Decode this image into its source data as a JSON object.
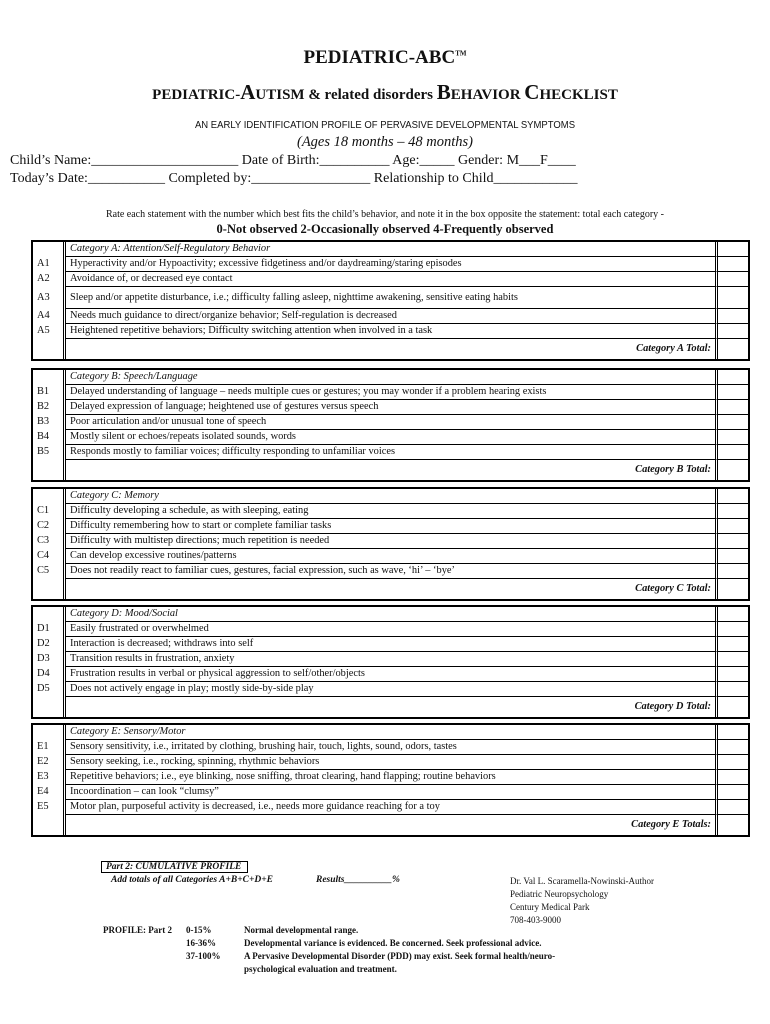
{
  "header": {
    "title": "PEDIATRIC-ABC",
    "tm": "TM",
    "subtitle_parts": [
      "PEDIATRIC-",
      "A",
      "UTISM & related disorders ",
      "B",
      "EHAVIOR ",
      "C",
      "HECKLIST"
    ],
    "tagline": "AN EARLY IDENTIFICATION PROFILE OF PERVASIVE DEVELOPMENTAL SYMPTOMS",
    "ages": "(Ages 18 months – 48 months)"
  },
  "fields": {
    "line1": "Child’s Name:_____________________  Date of Birth:__________  Age:_____  Gender: M___F____",
    "line2": "Today’s Date:___________    Completed by:_________________  Relationship to Child____________"
  },
  "instructions": {
    "rate": "Rate each statement with the number which best fits the child’s behavior, and note it in the box opposite the statement: total each category -",
    "scale": "0-Not observed   2-Occasionally observed   4-Frequently observed"
  },
  "categories": [
    {
      "title": "Category A: Attention/Self-Regulatory Behavior",
      "total": "Category A Total:",
      "items": [
        {
          "id": "A1",
          "text": "Hyperactivity and/or Hypoactivity; excessive fidgetiness and/or daydreaming/staring episodes"
        },
        {
          "id": "A2",
          "text": "Avoidance of, or decreased eye contact"
        },
        {
          "id": "A3",
          "text": "Sleep and/or appetite disturbance, i.e.; difficulty falling asleep, nighttime awakening, sensitive eating habits"
        },
        {
          "id": "A4",
          "text": "Needs much guidance to direct/organize behavior; Self-regulation is decreased"
        },
        {
          "id": "A5",
          "text": "Heightened repetitive behaviors; Difficulty switching attention when involved in a task"
        }
      ]
    },
    {
      "title": "Category B: Speech/Language",
      "total": "Category B Total:",
      "items": [
        {
          "id": "B1",
          "text": "Delayed understanding of language – needs multiple cues or gestures; you may wonder if a problem hearing exists"
        },
        {
          "id": "B2",
          "text": "Delayed expression of language; heightened use of gestures versus speech"
        },
        {
          "id": "B3",
          "text": "Poor articulation and/or unusual tone of speech"
        },
        {
          "id": "B4",
          "text": "Mostly silent or echoes/repeats isolated sounds, words"
        },
        {
          "id": "B5",
          "text": "Responds mostly to familiar voices; difficulty responding to unfamiliar voices"
        }
      ]
    },
    {
      "title": "Category C: Memory",
      "total": "Category C Total:",
      "items": [
        {
          "id": "C1",
          "text": "Difficulty developing a schedule, as with sleeping, eating"
        },
        {
          "id": "C2",
          "text": "Difficulty remembering how to start or complete familiar tasks"
        },
        {
          "id": "C3",
          "text": "Difficulty with multistep directions; much repetition is needed"
        },
        {
          "id": "C4",
          "text": "Can develop excessive routines/patterns"
        },
        {
          "id": "C5",
          "text": "Does not readily react to familiar cues, gestures, facial expression, such as wave, ‘hi’ – ‘bye’"
        }
      ]
    },
    {
      "title": "Category D: Mood/Social",
      "total": "Category D Total:",
      "items": [
        {
          "id": "D1",
          "text": "Easily frustrated or overwhelmed"
        },
        {
          "id": "D2",
          "text": "Interaction is decreased; withdraws into self"
        },
        {
          "id": "D3",
          "text": "Transition results in frustration, anxiety"
        },
        {
          "id": "D4",
          "text": "Frustration results in verbal or physical aggression to self/other/objects"
        },
        {
          "id": "D5",
          "text": "Does not actively engage in play; mostly side-by-side play"
        }
      ]
    },
    {
      "title": "Category E: Sensory/Motor",
      "total": "Category E Totals:",
      "items": [
        {
          "id": "E1",
          "text": "Sensory sensitivity, i.e., irritated by clothing, brushing hair, touch, lights, sound, odors, tastes"
        },
        {
          "id": "E2",
          "text": "Sensory seeking, i.e.,  rocking, spinning, rhythmic behaviors"
        },
        {
          "id": "E3",
          "text": "Repetitive behaviors; i.e., eye blinking, nose sniffing, throat clearing, hand flapping; routine behaviors"
        },
        {
          "id": "E4",
          "text": "Incoordination – can look “clumsy”"
        },
        {
          "id": "E5",
          "text": "Motor plan, purposeful activity is decreased, i.e., needs more guidance reaching for a toy"
        }
      ]
    }
  ],
  "part2": {
    "title": "Part 2: CUMULATIVE PROFILE",
    "add": "Add totals of all Categories A+B+C+D+E",
    "results": "Results__________%",
    "profile_label": "PROFILE: Part 2",
    "ranges": [
      {
        "range": "0-15%",
        "text": "Normal developmental range."
      },
      {
        "range": "16-36%",
        "text": "Developmental variance is evidenced.  Be concerned.  Seek professional advice."
      },
      {
        "range": "37-100%",
        "text": "A Pervasive Developmental Disorder (PDD) may exist.  Seek formal health/neuro-"
      }
    ],
    "range_cont": "psychological evaluation and treatment."
  },
  "author": {
    "name": "Dr. Val L. Scaramella-Nowinski-Author",
    "dept": "Pediatric Neuropsychology",
    "place": "Century Medical Park",
    "phone": "708-403-9000"
  }
}
